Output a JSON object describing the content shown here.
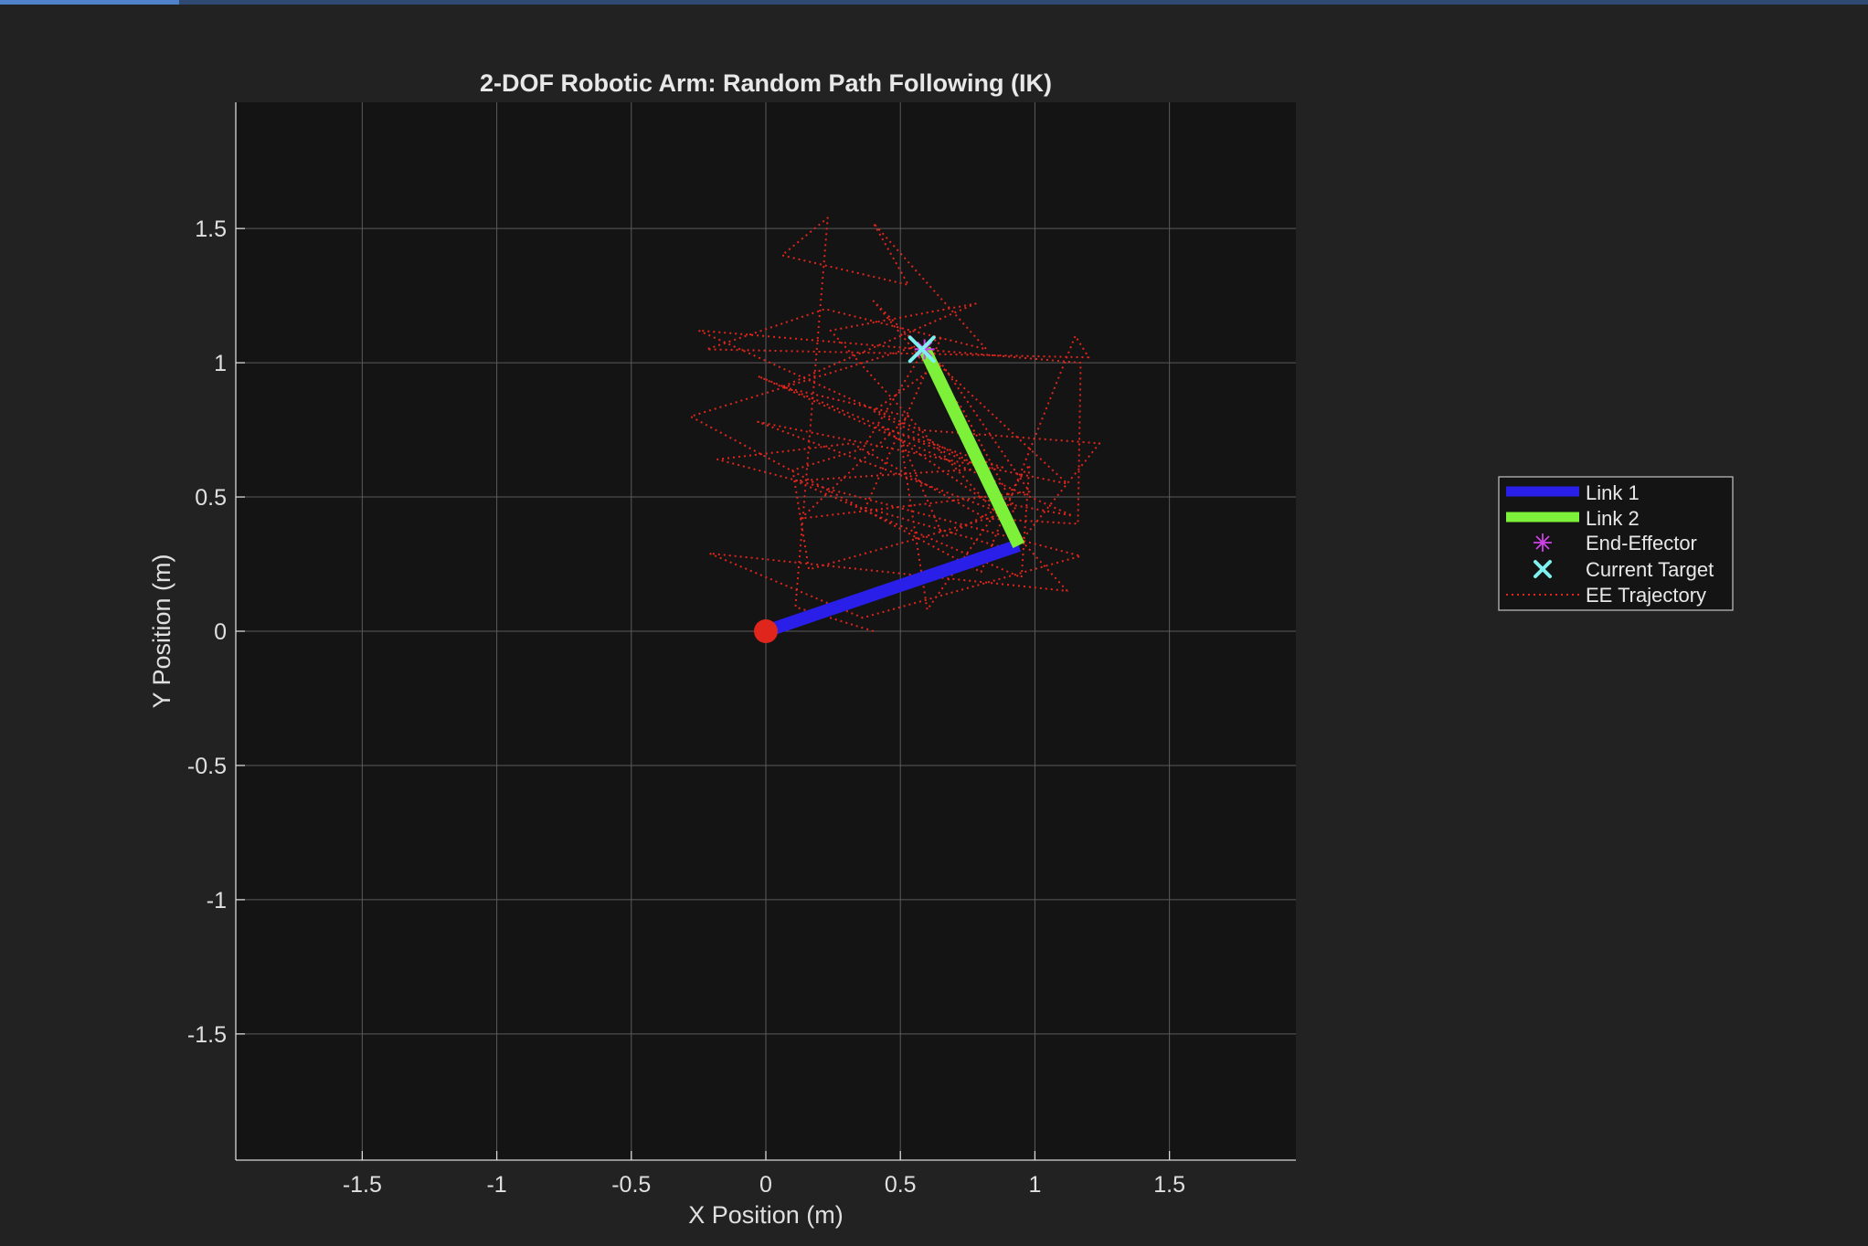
{
  "window": {
    "progress_fraction": 0.096
  },
  "chart_data": {
    "type": "line",
    "title": "2-DOF Robotic Arm: Random Path Following (IK)",
    "xlabel": "X Position (m)",
    "ylabel": "Y Position (m)",
    "xlim": [
      -1.97,
      1.97
    ],
    "ylim": [
      -1.97,
      1.97
    ],
    "xticks": [
      -1.5,
      -1,
      -0.5,
      0,
      0.5,
      1,
      1.5
    ],
    "yticks": [
      -1.5,
      -1,
      -0.5,
      0,
      0.5,
      1,
      1.5
    ],
    "xtick_labels": [
      "-1.5",
      "-1",
      "-0.5",
      "0",
      "0.5",
      "1",
      "1.5"
    ],
    "ytick_labels": [
      "-1.5",
      "-1",
      "-0.5",
      "0",
      "0.5",
      "1",
      "1.5"
    ],
    "grid": true,
    "legend_position": "outside-right",
    "colors": {
      "figure_bg": "#222222",
      "axes_bg": "#141414",
      "grid": "#5a5a5a",
      "text": "#e0e0e0",
      "base": "#e0261c",
      "link1": "#2a1fe8",
      "link2": "#7df03a",
      "end_effector": "#d040e8",
      "target": "#7ef0f0",
      "trajectory": "#e0261c"
    },
    "base": {
      "x": 0,
      "y": 0
    },
    "link1": {
      "name": "Link 1",
      "x": [
        0,
        0.94
      ],
      "y": [
        0,
        0.32
      ]
    },
    "link2": {
      "name": "Link 2",
      "x": [
        0.94,
        0.59
      ],
      "y": [
        0.32,
        1.05
      ]
    },
    "end_effector": {
      "name": "End-Effector",
      "x": 0.59,
      "y": 1.05
    },
    "target": {
      "name": "Current Target",
      "x": 0.58,
      "y": 1.05
    },
    "trajectory": {
      "name": "EE Trajectory",
      "x": [
        0.4,
        0.11,
        0.23,
        0.06,
        0.53,
        0.4,
        0.82,
        0.22,
        -0.22,
        1.2,
        1.15,
        0.8,
        -0.28,
        0.65,
        0.37,
        0.92,
        1.24,
        0.57,
        -0.25,
        1.17,
        1.16,
        0.82,
        0.32,
        -0.18,
        1.17,
        0.36,
        -0.21,
        1.12,
        0.24,
        0.78,
        0.06,
        0.53,
        0.13,
        0.98,
        0.65,
        0.4,
        0.78,
        -0.03,
        1.14,
        0.81,
        0.43,
        0.88,
        0.11,
        0.95,
        0.98,
        0.6,
        0.5,
        0.66,
        0.85,
        -0.03,
        1.12,
        0.55,
        0.4,
        0.73,
        0.93,
        0.16,
        0.1,
        0.36,
        0.59
      ],
      "y": [
        0.0,
        0.09,
        1.54,
        1.4,
        1.29,
        1.52,
        1.05,
        1.2,
        1.05,
        1.02,
        1.1,
        0.22,
        0.8,
        1.09,
        0.46,
        0.3,
        0.7,
        0.75,
        1.12,
        1.0,
        0.4,
        0.42,
        0.7,
        0.64,
        0.28,
        0.05,
        0.29,
        0.15,
        1.12,
        1.22,
        0.91,
        0.8,
        0.42,
        0.52,
        1.0,
        0.82,
        0.62,
        0.95,
        0.43,
        0.49,
        0.76,
        0.61,
        0.56,
        0.2,
        0.62,
        0.08,
        0.72,
        0.35,
        0.45,
        0.78,
        0.55,
        1.08,
        1.23,
        0.83,
        0.45,
        0.23,
        0.6,
        0.68,
        1.05
      ]
    }
  }
}
